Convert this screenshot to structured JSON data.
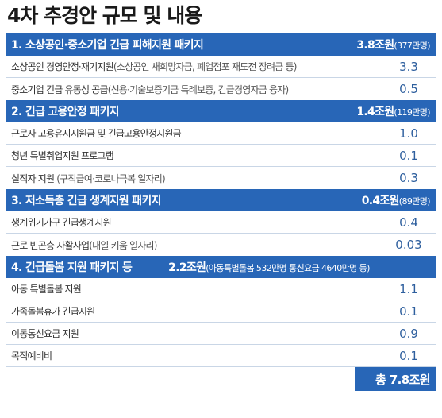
{
  "title": "4차 추경안 규모 및 내용",
  "colors": {
    "header_bg": "#2866b7",
    "value_text": "#2e5f9e",
    "divider": "#c9d6e6"
  },
  "sections": [
    {
      "label": "1. 소상공인·중소기업 긴급 피해지원 패키지",
      "amount": "3.8조원",
      "sub": "(377만명)",
      "items": [
        {
          "label": "소상공인 경영안정·재기지원",
          "note": "(소상공인 새희망자금, 폐업점포 재도전 장려금 등)",
          "value": "3.3"
        },
        {
          "label": "중소기업 긴급 유동성 공급",
          "note": "(신용·기술보증기금 특례보증, 긴급경영자금 융자)",
          "value": "0.5"
        }
      ]
    },
    {
      "label": "2. 긴급 고용안정 패키지",
      "amount": "1.4조원",
      "sub": "(119만명)",
      "items": [
        {
          "label": "근로자 고용유지지원금 및 긴급고용안정지원금",
          "note": "",
          "value": "1.0"
        },
        {
          "label": "청년 특별취업지원 프로그램",
          "note": "",
          "value": "0.1"
        },
        {
          "label": "실직자 지원",
          "note": " (구직급여·코로나극복 일자리)",
          "value": "0.3"
        }
      ]
    },
    {
      "label": "3. 저소득층 긴급 생계지원 패키지",
      "amount": "0.4조원",
      "sub": "(89만명)",
      "items": [
        {
          "label": "생계위기가구 긴급생계지원",
          "note": "",
          "value": "0.4"
        },
        {
          "label": "근로 빈곤층 자활사업",
          "note": "(내일 키움 일자리)",
          "value": "0.03"
        }
      ]
    },
    {
      "label": "4. 긴급돌봄 지원 패키지 등",
      "amount": "2.2조원",
      "sub": "(아동특별돌봄 532만명 통신요금 4640만명 등)",
      "items": [
        {
          "label": "아동 특별돌봄 지원",
          "note": "",
          "value": "1.1"
        },
        {
          "label": "가족돌봄휴가 긴급지원",
          "note": "",
          "value": "0.1"
        },
        {
          "label": "이동통신요금 지원",
          "note": "",
          "value": "0.9"
        },
        {
          "label": "목적예비비",
          "note": "",
          "value": "0.1"
        }
      ]
    }
  ],
  "total": "총 7.8조원"
}
